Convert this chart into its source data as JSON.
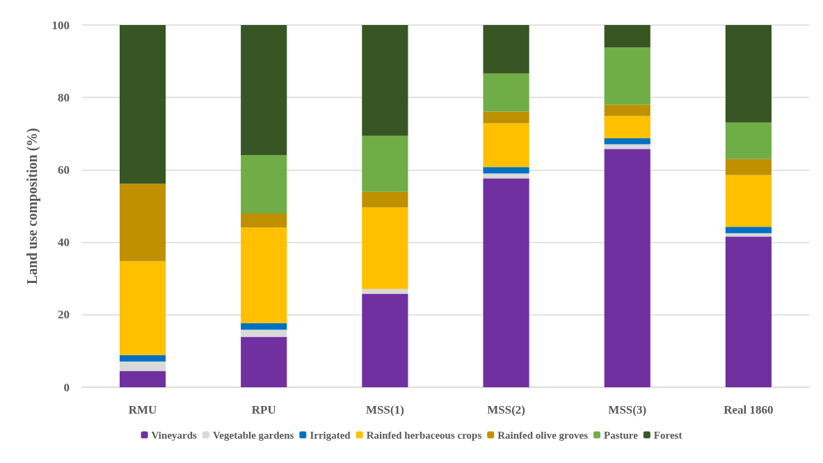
{
  "chart_data": {
    "type": "bar",
    "stacked": true,
    "ylabel": "Land use composition (%)",
    "categories": [
      "RMU",
      "RPU",
      "MSS(1)",
      "MSS(2)",
      "MSS(3)",
      "Real 1860"
    ],
    "series": [
      {
        "name": "Vineyards",
        "color": "#7030a0",
        "values": [
          4.5,
          13.9,
          25.8,
          57.7,
          65.8,
          41.6
        ]
      },
      {
        "name": "Vegetable gardens",
        "color": "#d9d9d9",
        "values": [
          2.6,
          2.0,
          1.3,
          1.3,
          1.3,
          0.9
        ]
      },
      {
        "name": "Irrigated",
        "color": "#0070c0",
        "values": [
          1.8,
          1.8,
          0,
          1.8,
          1.6,
          1.8
        ]
      },
      {
        "name": "Rainfed herbaceous crops",
        "color": "#ffc000",
        "values": [
          25.9,
          26.4,
          22.5,
          12.1,
          6.2,
          14.3
        ]
      },
      {
        "name": "Rainfed olive groves",
        "color": "#bf9000",
        "values": [
          21.4,
          3.9,
          4.4,
          3.2,
          3.1,
          4.4
        ]
      },
      {
        "name": "Pasture",
        "color": "#70ad47",
        "values": [
          0,
          16.1,
          15.4,
          10.5,
          15.8,
          10.1
        ]
      },
      {
        "name": "Forest",
        "color": "#375623",
        "values": [
          43.8,
          35.9,
          30.6,
          13.4,
          6.2,
          26.9
        ]
      }
    ],
    "ylim": [
      0,
      100
    ],
    "yticks": [
      0,
      20,
      40,
      60,
      80,
      100
    ],
    "grid": "y",
    "legend": "bottom"
  }
}
